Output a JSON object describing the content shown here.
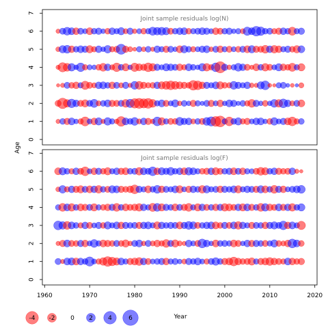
{
  "chart_data": [
    {
      "type": "scatter",
      "title": "Joint sample residuals log(N)",
      "ylabel": "Age",
      "ylim": [
        -0.3,
        7.2
      ],
      "yticks": [
        0,
        1,
        2,
        3,
        4,
        5,
        6,
        7
      ],
      "ages": [
        1,
        2,
        3,
        4,
        5,
        6
      ],
      "years": [
        1963,
        2017
      ],
      "grid": false,
      "residuals": [
        [
          -0.5,
          0.9,
          -1.1,
          1.3,
          0.6,
          -0.8,
          -2.1,
          0.7,
          -1.2,
          1.4,
          -0.5,
          1.5,
          0.8,
          -0.6,
          -2.4,
          1.3,
          0.9,
          1.6,
          -0.7,
          1.2,
          -1.1,
          -0.6,
          2.0,
          -1.5,
          0.8,
          -1.0,
          -0.9,
          1.7,
          1.1,
          1.2,
          -0.7,
          0.9,
          -1.0,
          1.6,
          2.2,
          -2.5,
          -3.0,
          0.8,
          -2.0,
          0.9,
          1.4,
          -0.8,
          -1.1,
          0.7,
          1.2,
          1.3,
          0.6,
          -0.9,
          1.5,
          0.7,
          1.1,
          -1.3,
          -2.0,
          -0.8,
          0.9
        ],
        [
          -1.0,
          -2.8,
          -1.5,
          1.9,
          1.2,
          -1.0,
          -1.4,
          1.0,
          1.7,
          -0.7,
          0.9,
          1.3,
          -1.1,
          -1.0,
          1.0,
          -1.6,
          1.8,
          -2.3,
          -2.6,
          -2.2,
          -2.5,
          -1.6,
          0.8,
          1.3,
          -1.0,
          0.7,
          1.4,
          -0.6,
          0.9,
          0.6,
          -1.1,
          0.8,
          0.5,
          1.0,
          -1.1,
          0.7,
          -1.2,
          0.6,
          1.3,
          1.1,
          0.5,
          0.9,
          -0.8,
          -1.6,
          1.1,
          0.6,
          -0.9,
          0.6,
          1.6,
          -1.5,
          2.0,
          1.2,
          -0.7,
          1.0,
          -1.3
        ],
        [
          -0.3,
          -0.5,
          1.0,
          -0.9,
          -1.2,
          0.8,
          -1.8,
          -1.0,
          -0.7,
          1.2,
          1.3,
          0.9,
          -1.2,
          1.0,
          -0.7,
          1.1,
          -0.5,
          1.6,
          -1.6,
          -1.1,
          -0.8,
          -0.9,
          1.2,
          -1.4,
          -1.7,
          -2.0,
          -1.6,
          -1.3,
          -1.1,
          -0.9,
          -2.4,
          -2.0,
          -1.2,
          1.1,
          0.8,
          1.3,
          -1.4,
          -0.9,
          -0.8,
          1.6,
          1.1,
          0.8,
          1.2,
          -0.6,
          -0.5,
          1.4,
          2.0,
          -0.4,
          -0.3,
          0.8,
          1.0,
          0.4,
          -0.4,
          0.3,
          -0.7
        ],
        [
          -0.5,
          -2.2,
          -1.6,
          1.5,
          0.6,
          1.9,
          -0.8,
          0.7,
          0.6,
          -0.9,
          -1.6,
          1.2,
          -0.7,
          -1.9,
          0.9,
          -1.4,
          0.6,
          -1.8,
          -1.3,
          -1.1,
          -2.0,
          -1.5,
          1.1,
          0.7,
          1.4,
          1.2,
          1.0,
          -1.2,
          -0.8,
          1.3,
          0.9,
          0.6,
          1.5,
          -1.5,
          -0.8,
          2.0,
          -3.2,
          1.1,
          -0.6,
          0.8,
          1.6,
          1.2,
          -1.0,
          -0.5,
          -1.3,
          0.9,
          -1.5,
          -1.0,
          0.7,
          1.4,
          -1.2,
          -0.9,
          -1.7,
          0.8,
          -1.4
        ],
        [
          -0.6,
          1.4,
          1.6,
          -1.2,
          0.9,
          1.3,
          1.1,
          -1.4,
          -0.8,
          1.2,
          0.6,
          1.5,
          -0.8,
          -1.0,
          2.6,
          -1.1,
          -0.7,
          -0.4,
          0.8,
          -0.6,
          0.9,
          -0.5,
          1.2,
          0.8,
          -1.1,
          1.0,
          0.6,
          -1.3,
          1.4,
          0.9,
          -0.8,
          0.7,
          1.1,
          1.3,
          -0.6,
          1.0,
          -1.2,
          0.8,
          -1.0,
          0.7,
          -0.9,
          1.0,
          -1.3,
          1.4,
          -1.1,
          -1.0,
          -1.6,
          1.2,
          -1.5,
          -1.2,
          0.8,
          1.1,
          -0.9,
          -1.4,
          1.3
        ],
        [
          -0.5,
          1.0,
          1.6,
          1.3,
          -1.2,
          1.0,
          0.7,
          -1.3,
          0.9,
          1.1,
          0.6,
          -0.9,
          1.2,
          0.8,
          1.4,
          -0.7,
          1.1,
          -0.6,
          0.7,
          -0.9,
          0.8,
          1.7,
          1.5,
          1.6,
          1.4,
          -1.0,
          0.9,
          1.2,
          1.3,
          -0.9,
          0.8,
          1.0,
          1.3,
          1.1,
          0.7,
          -1.2,
          -1.0,
          0.9,
          1.1,
          0.6,
          0.8,
          -0.7,
          1.8,
          1.3,
          2.4,
          1.9,
          0.9,
          1.0,
          -0.8,
          -1.1,
          1.2,
          0.9,
          -1.7,
          0.8,
          1.1
        ]
      ]
    },
    {
      "type": "scatter",
      "title": "Joint sample residuals log(F)",
      "xlabel": "Year",
      "ylabel": "",
      "ylim": [
        -0.3,
        7.2
      ],
      "yticks": [
        0,
        1,
        2,
        3,
        4,
        5,
        6,
        7
      ],
      "xlim": [
        1959.5,
        2020.5
      ],
      "xticks": [
        1960,
        1970,
        1980,
        1990,
        2000,
        2010,
        2020
      ],
      "ages": [
        1,
        2,
        3,
        4,
        5,
        6
      ],
      "years": [
        1963,
        2017
      ],
      "grid": false,
      "residuals": [
        [
          1.0,
          -0.5,
          1.3,
          1.4,
          -1.3,
          1.2,
          0.9,
          2.2,
          0.7,
          -0.8,
          -1.5,
          -2.4,
          -1.9,
          -1.4,
          1.3,
          0.8,
          -1.1,
          -1.3,
          -1.6,
          1.2,
          -1.0,
          0.7,
          0.9,
          1.1,
          -1.2,
          0.8,
          1.0,
          0.6,
          -0.7,
          1.1,
          0.9,
          1.3,
          0.7,
          -0.8,
          1.0,
          1.5,
          0.9,
          -1.1,
          -1.3,
          -2.0,
          -1.2,
          -0.9,
          -1.0,
          -1.4,
          0.8,
          -1.1,
          -1.3,
          -1.6,
          -1.2,
          -1.0,
          -0.8,
          1.3,
          -1.2,
          -0.9,
          -1.1
        ],
        [
          -0.5,
          -1.1,
          1.3,
          -1.0,
          -0.9,
          1.1,
          -1.2,
          0.7,
          1.6,
          0.8,
          -1.3,
          -1.1,
          -0.9,
          1.0,
          -0.9,
          -1.4,
          -0.6,
          1.0,
          1.3,
          -0.6,
          1.0,
          -0.7,
          -1.2,
          -0.8,
          -1.6,
          1.0,
          -1.4,
          -0.7,
          -0.5,
          1.2,
          0.7,
          -1.0,
          2.0,
          1.2,
          0.6,
          -1.3,
          0.9,
          1.0,
          0.8,
          -1.3,
          -1.0,
          0.6,
          1.2,
          -1.1,
          1.1,
          0.9,
          -1.0,
          0.8,
          1.4,
          -0.9,
          -0.7,
          -1.2,
          2.0,
          1.3,
          -0.9
        ],
        [
          2.0,
          1.5,
          -1.6,
          1.3,
          0.9,
          -0.8,
          1.2,
          -1.0,
          0.7,
          1.1,
          -0.9,
          1.4,
          0.8,
          1.3,
          -1.2,
          1.1,
          0.9,
          1.0,
          -1.1,
          1.2,
          1.3,
          0.8,
          -1.4,
          1.2,
          0.9,
          1.1,
          1.0,
          -1.3,
          1.1,
          1.6,
          1.4,
          -1.0,
          0.9,
          1.2,
          1.3,
          -1.3,
          -0.9,
          1.1,
          -1.0,
          1.3,
          -1.5,
          1.2,
          0.8,
          -1.1,
          1.0,
          0.9,
          -1.2,
          1.1,
          1.4,
          1.0,
          1.9,
          -1.2,
          1.3,
          0.8,
          -1.8
        ],
        [
          0.8,
          -1.6,
          1.3,
          -1.5,
          0.9,
          -1.3,
          -1.1,
          1.0,
          -1.4,
          0.8,
          -0.9,
          -1.2,
          1.1,
          -1.6,
          0.9,
          -1.3,
          -1.0,
          -1.2,
          -1.5,
          1.2,
          0.8,
          -1.7,
          1.6,
          -1.4,
          1.1,
          0.9,
          -1.3,
          1.0,
          -1.1,
          -1.6,
          0.8,
          -1.4,
          1.2,
          -1.0,
          0.9,
          -1.2,
          1.1,
          -1.5,
          -1.3,
          -1.0,
          1.2,
          -1.4,
          1.3,
          -1.1,
          0.9,
          -1.6,
          1.5,
          -1.2,
          -1.0,
          1.3,
          -1.1,
          1.2,
          -1.5,
          0.9,
          1.4
        ],
        [
          -0.6,
          1.5,
          -0.8,
          1.2,
          -1.1,
          -1.4,
          1.0,
          -1.3,
          1.2,
          -1.5,
          0.9,
          -1.0,
          1.4,
          1.3,
          -1.1,
          -0.9,
          -1.2,
          -2.0,
          1.1,
          0.8,
          -1.3,
          0.9,
          1.6,
          -1.2,
          1.0,
          0.8,
          1.3,
          -1.4,
          0.7,
          -1.1,
          1.2,
          0.9,
          -1.5,
          1.4,
          0.8,
          1.0,
          -1.2,
          1.1,
          0.9,
          1.3,
          -1.4,
          0.8,
          1.2,
          1.0,
          -1.1,
          1.4,
          -1.3,
          0.9,
          -1.6,
          1.1,
          -1.2,
          0.7,
          1.0,
          1.3,
          1.6
        ],
        [
          -1.3,
          1.4,
          0.9,
          -0.8,
          1.2,
          -1.0,
          -2.0,
          0.7,
          -1.2,
          1.1,
          -0.9,
          -1.4,
          0.8,
          1.2,
          -1.1,
          -1.3,
          0.9,
          1.0,
          -1.5,
          1.3,
          1.0,
          2.0,
          -1.2,
          1.4,
          1.1,
          1.6,
          0.9,
          1.2,
          -1.3,
          1.5,
          1.3,
          0.8,
          -0.9,
          -1.1,
          1.2,
          -1.4,
          -1.0,
          0.9,
          1.1,
          -1.3,
          1.0,
          -1.2,
          0.8,
          0.7,
          -1.0,
          -1.6,
          -1.4,
          0.9,
          1.2,
          -1.1,
          -0.9,
          -1.0,
          1.2,
          -0.5,
          -0.3
        ]
      ]
    }
  ],
  "legend": {
    "entries": [
      "-4",
      "-2",
      "0",
      "2",
      "4",
      "6"
    ],
    "values": [
      -4,
      -2,
      0,
      2,
      4,
      6
    ]
  },
  "colors": {
    "negative": "#ff0000",
    "positive": "#0000ff",
    "text": "#555555"
  }
}
